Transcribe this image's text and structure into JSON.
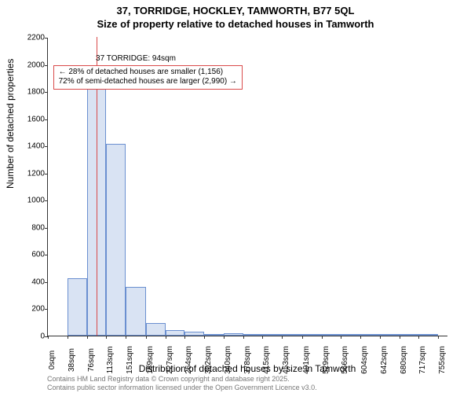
{
  "title_line1": "37, TORRIDGE, HOCKLEY, TAMWORTH, B77 5QL",
  "title_line2": "Size of property relative to detached houses in Tamworth",
  "ylabel": "Number of detached properties",
  "xlabel": "Distribution of detached houses by size in Tamworth",
  "footer_line1": "Contains HM Land Registry data © Crown copyright and database right 2025.",
  "footer_line2": "Contains public sector information licensed under the Open Government Licence v3.0.",
  "chart": {
    "type": "histogram",
    "ylim": [
      0,
      2200
    ],
    "ytick_step": 200,
    "x_start": 0,
    "x_end": 774,
    "x_tick_labels": [
      "0sqm",
      "38sqm",
      "76sqm",
      "113sqm",
      "151sqm",
      "189sqm",
      "227sqm",
      "264sqm",
      "302sqm",
      "340sqm",
      "378sqm",
      "415sqm",
      "453sqm",
      "491sqm",
      "529sqm",
      "566sqm",
      "604sqm",
      "642sqm",
      "680sqm",
      "717sqm",
      "755sqm"
    ],
    "x_tick_values": [
      0,
      38,
      76,
      113,
      151,
      189,
      227,
      264,
      302,
      340,
      378,
      415,
      453,
      491,
      529,
      566,
      604,
      642,
      680,
      717,
      755
    ],
    "bars": [
      {
        "x0": 38,
        "x1": 76,
        "value": 420
      },
      {
        "x0": 76,
        "x1": 113,
        "value": 1820
      },
      {
        "x0": 113,
        "x1": 151,
        "value": 1410
      },
      {
        "x0": 151,
        "x1": 189,
        "value": 360
      },
      {
        "x0": 189,
        "x1": 227,
        "value": 90
      },
      {
        "x0": 227,
        "x1": 264,
        "value": 40
      },
      {
        "x0": 264,
        "x1": 302,
        "value": 30
      },
      {
        "x0": 302,
        "x1": 340,
        "value": 0
      },
      {
        "x0": 340,
        "x1": 378,
        "value": 20
      },
      {
        "x0": 378,
        "x1": 415,
        "value": 0
      },
      {
        "x0": 415,
        "x1": 453,
        "value": 0
      },
      {
        "x0": 453,
        "x1": 491,
        "value": 0
      },
      {
        "x0": 491,
        "x1": 529,
        "value": 0
      },
      {
        "x0": 529,
        "x1": 566,
        "value": 0
      },
      {
        "x0": 566,
        "x1": 604,
        "value": 0
      },
      {
        "x0": 604,
        "x1": 642,
        "value": 0
      },
      {
        "x0": 642,
        "x1": 680,
        "value": 0
      },
      {
        "x0": 680,
        "x1": 717,
        "value": 0
      },
      {
        "x0": 717,
        "x1": 755,
        "value": 0
      }
    ],
    "bar_fill": "#d9e3f3",
    "bar_stroke": "#6a8fd0",
    "background_color": "#ffffff",
    "marker": {
      "x": 94,
      "color": "#d94a4a"
    },
    "annotation_label": {
      "text": "37 TORRIDGE: 94sqm",
      "y_value": 2080,
      "x_value": 170
    },
    "annotation_box": {
      "line1": "← 28% of detached houses are smaller (1,156)",
      "line2": "72% of semi-detached houses are larger (2,990) →",
      "border_color": "#d94a4a",
      "top_y_value": 2000,
      "left_x_value": 10
    }
  }
}
